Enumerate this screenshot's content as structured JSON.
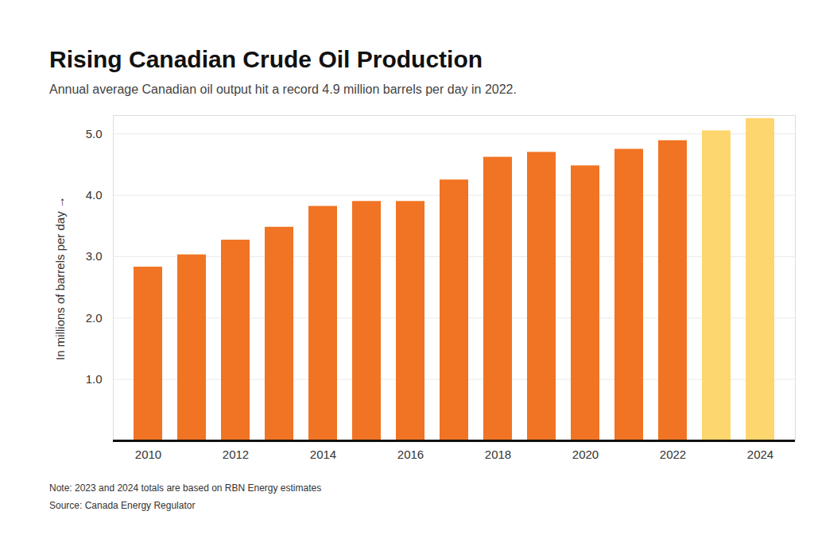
{
  "chart_data": {
    "type": "bar",
    "title": "Rising Canadian Crude Oil Production",
    "subtitle": "Annual average Canadian oil output hit a record 4.9 million barrels per day in 2022.",
    "y_label": "In millions of barrels per day",
    "categories": [
      "2010",
      null,
      "2012",
      null,
      "2014",
      null,
      "2016",
      null,
      "2018",
      null,
      "2020",
      null,
      "2022",
      null,
      "2024"
    ],
    "values": [
      2.83,
      3.03,
      3.27,
      3.48,
      3.82,
      3.9,
      3.9,
      4.25,
      4.62,
      4.7,
      4.48,
      4.75,
      4.89,
      5.05,
      5.25
    ],
    "colors": [
      "#f07423",
      "#f07423",
      "#f07423",
      "#f07423",
      "#f07423",
      "#f07423",
      "#f07423",
      "#f07423",
      "#f07423",
      "#f07423",
      "#f07423",
      "#f07423",
      "#f07423",
      "#fed66e",
      "#fed66e"
    ],
    "ylim": [
      0,
      5.3
    ],
    "yticks": [
      1,
      2,
      3,
      4,
      5
    ],
    "grid": true,
    "notes": [
      "Note: 2023 and 2024 totals are based on RBN Energy estimates",
      "Source: Canada Energy Regulator"
    ]
  }
}
